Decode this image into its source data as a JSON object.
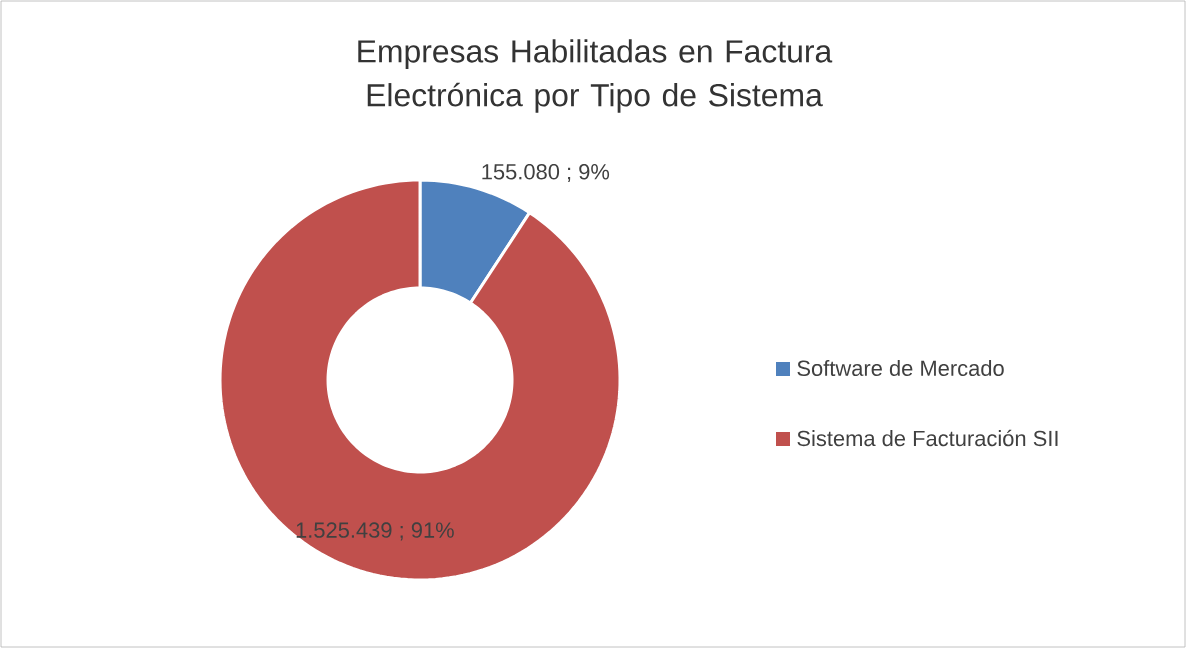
{
  "chart_data": {
    "type": "donut",
    "title": "Empresas Habilitadas en Factura Electrónica por Tipo de Sistema",
    "categories": [
      "Software de Mercado",
      "Sistema de Facturación SII"
    ],
    "values": [
      155080,
      1525439
    ],
    "colors": [
      "#4f81bd",
      "#c0504d"
    ],
    "value_labels": [
      "155.080 ; 9%",
      "1.525.439 ; 91%"
    ],
    "legend": "right"
  }
}
